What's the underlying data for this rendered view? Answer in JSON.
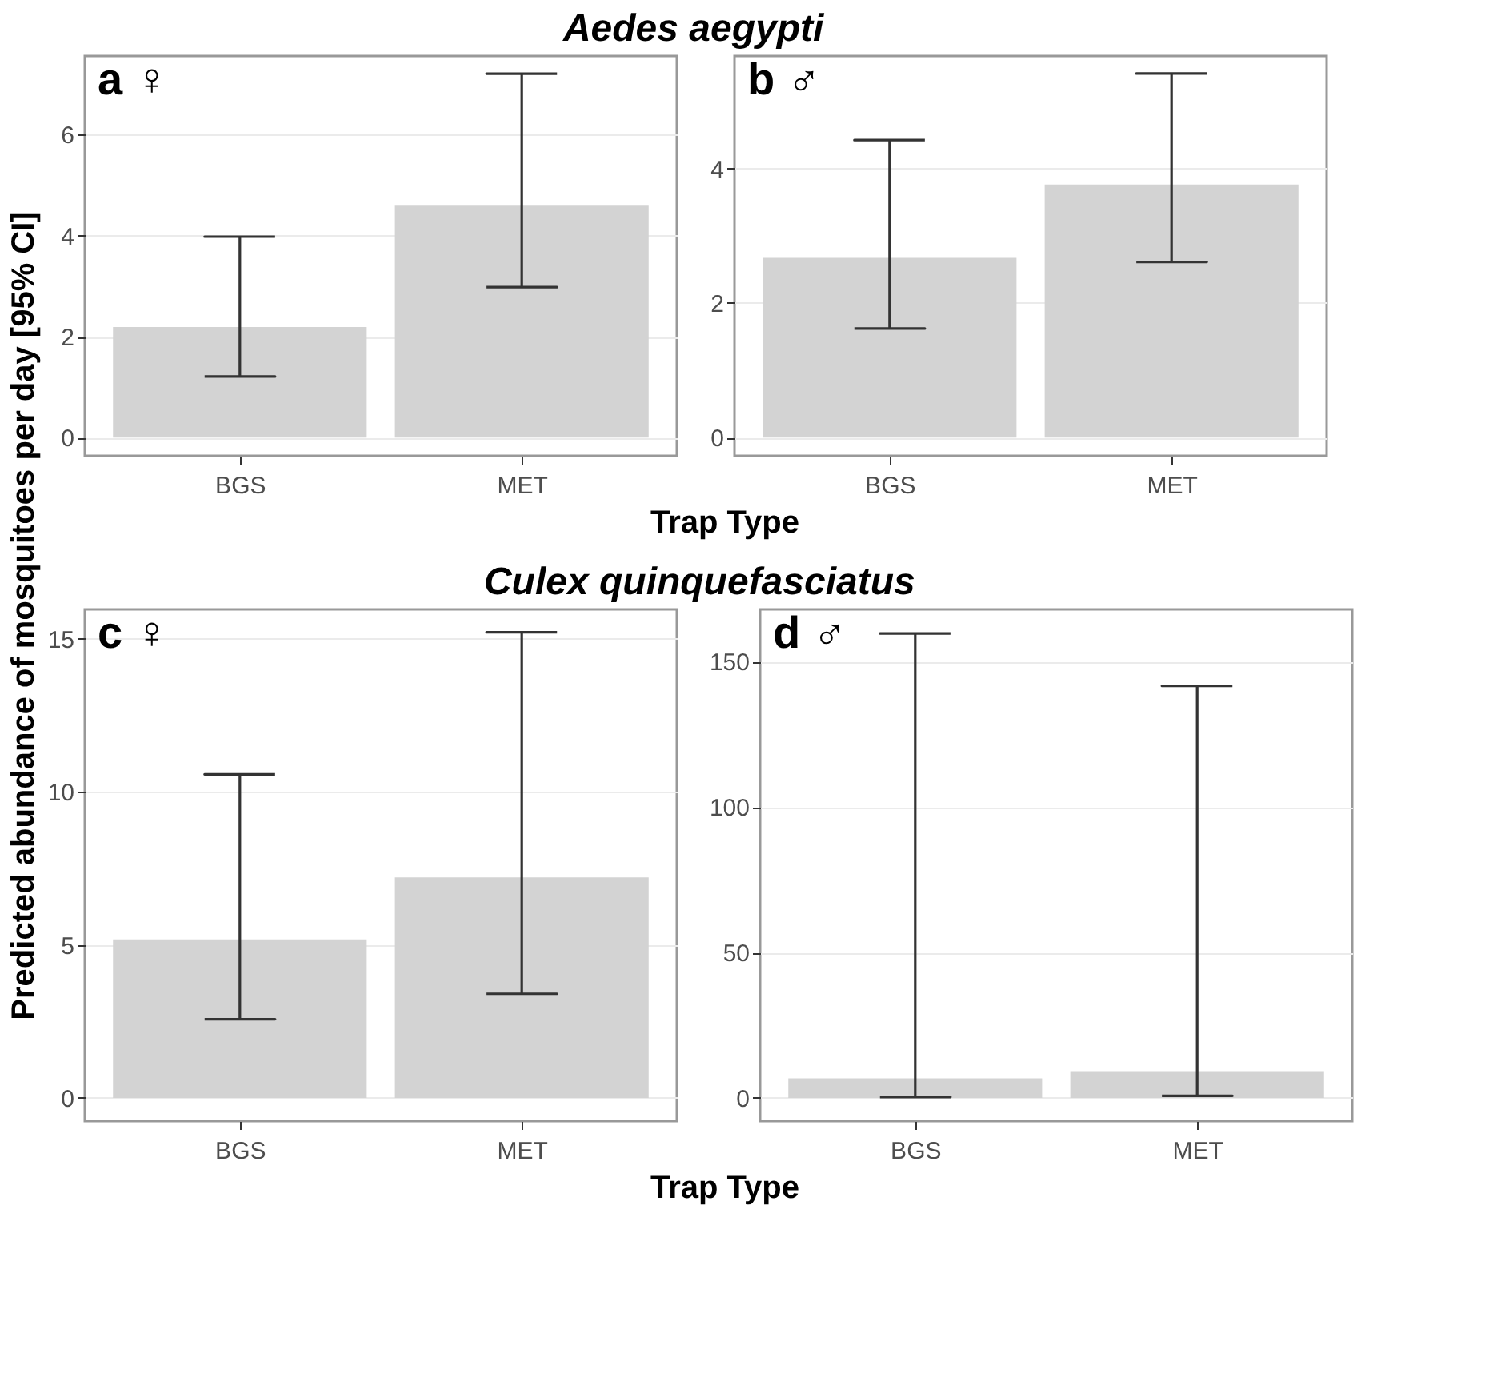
{
  "chart_data": [
    {
      "type": "bar",
      "title": "Aedes aegypti",
      "ylabel": "Predicted abundance of mosquitoes per day [95% CI]",
      "xlabel": "Trap Type",
      "categories": [
        "BGS",
        "MET"
      ],
      "values": [
        2.19,
        4.61
      ],
      "errors": [
        [
          1.21,
          3.98
        ],
        [
          2.98,
          7.21
        ]
      ],
      "color": "#d3d3d3",
      "ylim": [
        -0.36,
        7.56
      ],
      "yticks": [
        0,
        2,
        4,
        6
      ],
      "grid": "y",
      "annotations": [
        "a ♀"
      ]
    },
    {
      "type": "bar",
      "categories": [
        "BGS",
        "MET"
      ],
      "values": [
        2.67,
        3.76
      ],
      "errors": [
        [
          1.62,
          4.42
        ],
        [
          2.61,
          5.41
        ]
      ],
      "color": "#d3d3d3",
      "ylim": [
        -0.27,
        5.67
      ],
      "yticks": [
        0,
        2,
        4
      ],
      "grid": "y",
      "annotations": [
        "b ♂"
      ]
    },
    {
      "type": "bar",
      "title": "Culex quinquefasciatus",
      "xlabel": "Trap Type",
      "categories": [
        "BGS",
        "MET"
      ],
      "values": [
        5.18,
        7.2
      ],
      "errors": [
        [
          2.57,
          10.57
        ],
        [
          3.4,
          15.21
        ]
      ],
      "color": "#d3d3d3",
      "ylim": [
        -0.76,
        15.96
      ],
      "yticks": [
        0,
        5,
        10,
        15
      ],
      "grid": "y",
      "annotations": [
        "c ♀"
      ]
    },
    {
      "type": "bar",
      "categories": [
        "BGS",
        "MET"
      ],
      "values": [
        6.7,
        9.2
      ],
      "errors": [
        [
          0.3,
          159.7
        ],
        [
          0.7,
          141.7
        ]
      ],
      "color": "#d3d3d3",
      "ylim": [
        -8,
        168
      ],
      "yticks": [
        0,
        50,
        100,
        150
      ],
      "grid": "y",
      "annotations": [
        "d ♂"
      ]
    }
  ]
}
